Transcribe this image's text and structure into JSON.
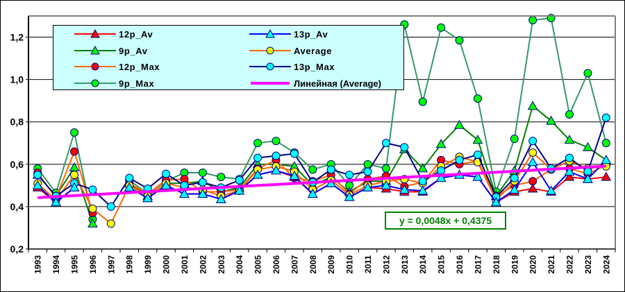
{
  "chart_data": {
    "type": "line",
    "title": "",
    "xlabel": "",
    "ylabel": "",
    "ylim": [
      0.2,
      1.3
    ],
    "yticks": [
      0.2,
      0.4,
      0.6,
      0.8,
      1.0,
      1.2
    ],
    "ytick_labels": [
      "0,2",
      "0,4",
      "0,6",
      "0,8",
      "1,0",
      "1,2"
    ],
    "grid": true,
    "legend_position": "top-left",
    "categories": [
      "1993",
      "1994",
      "1995",
      "1996",
      "1997",
      "1998",
      "1999",
      "2000",
      "2001",
      "2002",
      "2003",
      "2004",
      "2005",
      "2006",
      "2007",
      "2008",
      "2009",
      "2010",
      "2011",
      "2012",
      "2013",
      "2014",
      "2015",
      "2016",
      "2017",
      "2018",
      "2019",
      "2020",
      "2021",
      "2022",
      "2023",
      "2024"
    ],
    "series": [
      {
        "name": "9p_Max",
        "line": "#339966",
        "marker": "circle",
        "fill": "#00ff00",
        "values": [
          0.58,
          0.465,
          0.75,
          0.34,
          null,
          0.525,
          0.46,
          0.52,
          0.56,
          0.56,
          0.54,
          0.53,
          0.7,
          0.71,
          0.655,
          0.575,
          0.6,
          0.5,
          0.6,
          0.58,
          1.26,
          0.895,
          1.245,
          1.185,
          0.91,
          0.47,
          0.72,
          1.28,
          1.29,
          0.835,
          1.03,
          0.7
        ]
      },
      {
        "name": "9p_Av",
        "line": "#008000",
        "marker": "triangle",
        "fill": "#00ff00",
        "values": [
          0.55,
          0.45,
          0.585,
          0.32,
          null,
          0.51,
          0.45,
          0.51,
          0.51,
          0.52,
          0.47,
          0.49,
          0.6,
          0.6,
          0.59,
          0.5,
          0.54,
          0.47,
          0.52,
          0.52,
          0.67,
          0.58,
          0.695,
          0.785,
          0.715,
          0.45,
          0.57,
          0.875,
          0.805,
          0.715,
          0.68,
          0.62
        ]
      },
      {
        "name": "12p_Max",
        "line": "#ff6600",
        "marker": "circle",
        "fill": "#ff0000",
        "values": [
          0.56,
          0.44,
          0.66,
          0.37,
          null,
          0.51,
          0.46,
          0.525,
          0.53,
          0.47,
          0.47,
          0.48,
          0.58,
          0.62,
          0.535,
          0.52,
          0.55,
          0.46,
          0.53,
          0.545,
          0.495,
          0.515,
          0.62,
          0.6,
          0.615,
          0.45,
          0.5,
          0.52,
          0.575,
          0.58,
          0.555,
          0.595
        ]
      },
      {
        "name": "Average",
        "line": "#ff6600",
        "marker": "circle",
        "fill": "#ffff00",
        "values": [
          0.51,
          0.43,
          0.55,
          0.39,
          0.32,
          0.5,
          0.45,
          0.51,
          0.49,
          0.48,
          0.45,
          0.475,
          0.575,
          0.59,
          0.565,
          0.48,
          0.525,
          0.455,
          0.5,
          0.52,
          0.53,
          0.51,
          0.59,
          0.635,
          0.61,
          0.43,
          0.52,
          0.655,
          0.575,
          0.615,
          0.58,
          0.59
        ]
      },
      {
        "name": "13p_Max",
        "line": "#000080",
        "marker": "circle",
        "fill": "#00ffff",
        "values": [
          0.55,
          0.45,
          0.51,
          0.48,
          0.4,
          0.535,
          0.485,
          0.555,
          0.5,
          0.515,
          0.49,
          0.525,
          0.63,
          0.64,
          0.65,
          0.515,
          0.575,
          0.55,
          0.565,
          0.7,
          0.68,
          0.52,
          0.57,
          0.62,
          0.645,
          0.445,
          0.535,
          0.71,
          0.58,
          0.63,
          0.565,
          0.82
        ]
      },
      {
        "name": "12p_Av",
        "line": "#ff0000",
        "marker": "triangle",
        "fill": "#ff0000",
        "values": [
          0.49,
          0.42,
          0.49,
          null,
          null,
          0.49,
          0.44,
          0.5,
          0.46,
          0.46,
          0.435,
          0.475,
          0.55,
          0.57,
          0.54,
          0.46,
          0.51,
          0.445,
          0.49,
          0.485,
          0.47,
          0.47,
          0.535,
          0.55,
          0.54,
          0.42,
          0.47,
          0.485,
          0.47,
          0.54,
          0.53,
          0.54
        ]
      },
      {
        "name": "13p_Av",
        "line": "#0000ff",
        "marker": "triangle",
        "fill": "#00ffff",
        "values": [
          0.5,
          0.42,
          0.49,
          null,
          null,
          0.49,
          0.44,
          0.5,
          0.46,
          0.46,
          0.435,
          0.475,
          0.55,
          0.57,
          0.545,
          0.46,
          0.51,
          0.445,
          0.49,
          0.5,
          0.48,
          0.475,
          0.535,
          0.55,
          0.54,
          0.42,
          0.48,
          0.61,
          0.475,
          0.565,
          0.53,
          0.62
        ]
      }
    ],
    "trendline": {
      "name": "Линейная (Average)",
      "color": "#ff00ff",
      "slope": 0.0048,
      "intercept": 0.4375,
      "equation": "y = 0,0048x + 0,4375"
    },
    "legend": [
      {
        "label": "12p_Av",
        "line": "#ff0000",
        "marker": "triangle",
        "fill": "#ff0000"
      },
      {
        "label": "13p_Av",
        "line": "#0000ff",
        "marker": "triangle",
        "fill": "#00ffff"
      },
      {
        "label": "9p_Av",
        "line": "#008000",
        "marker": "triangle",
        "fill": "#00ff00"
      },
      {
        "label": "Average",
        "line": "#ff6600",
        "marker": "circle",
        "fill": "#ffff00"
      },
      {
        "label": "12p_Max",
        "line": "#ff6600",
        "marker": "circle",
        "fill": "#ff0000"
      },
      {
        "label": "13p_Max",
        "line": "#000080",
        "marker": "circle",
        "fill": "#00ffff"
      },
      {
        "label": "9p_Max",
        "line": "#339966",
        "marker": "circle",
        "fill": "#00ff00"
      },
      {
        "label": "Линейная (Average)",
        "line": "#ff00ff",
        "marker": "none",
        "fill": ""
      }
    ]
  }
}
